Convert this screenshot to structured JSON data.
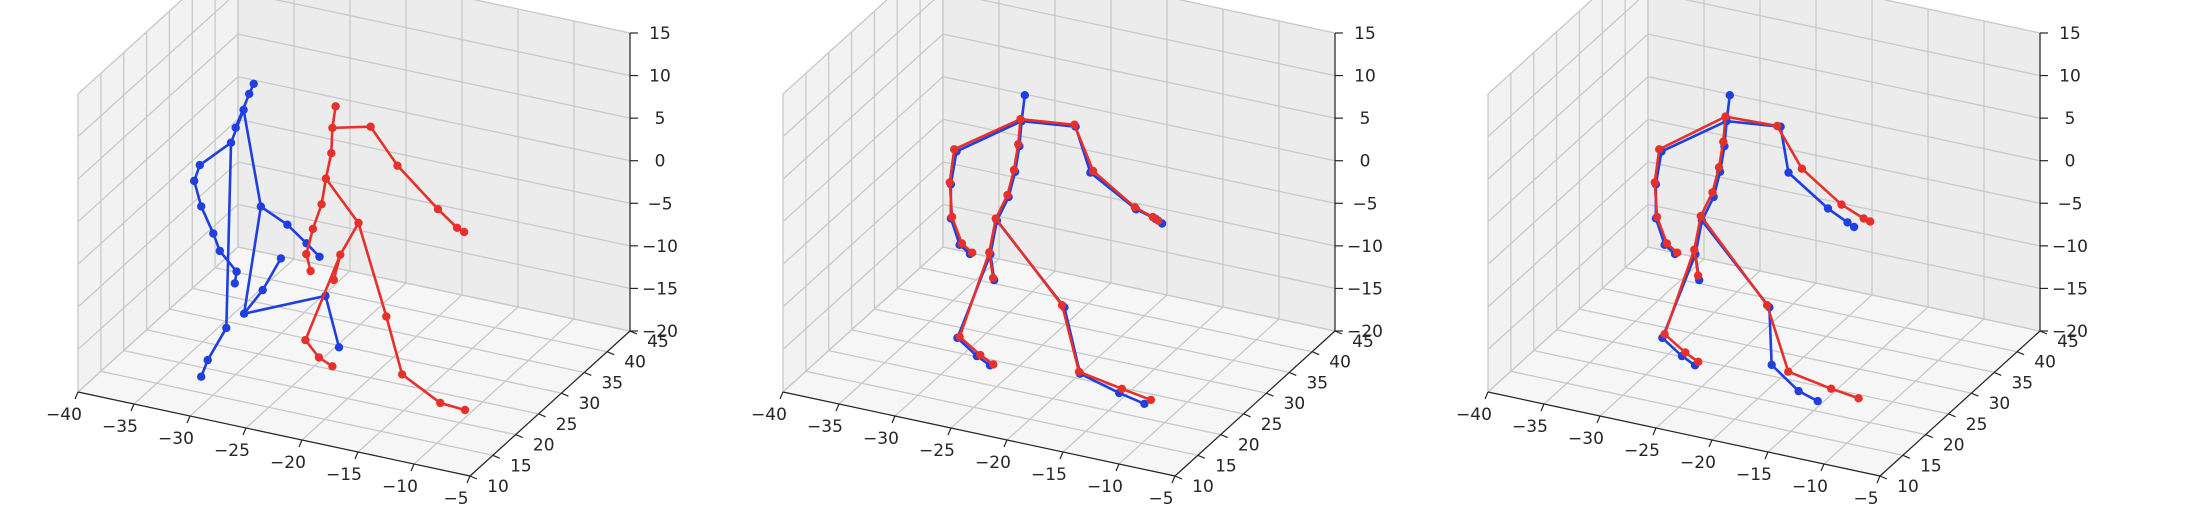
{
  "chart_data": [
    {
      "type": "scatter",
      "projection": "3d",
      "title": "",
      "xlabel": "",
      "ylabel": "",
      "zlabel": "",
      "xlim": [
        -40,
        -5
      ],
      "ylim": [
        10,
        45
      ],
      "zlim": [
        -20,
        15
      ],
      "xticks": [
        "−40",
        "−35",
        "−30",
        "−25",
        "−20",
        "−15",
        "−10",
        "−5"
      ],
      "yticks": [
        "10",
        "15",
        "20",
        "25",
        "30",
        "35",
        "40",
        "45"
      ],
      "zticks": [
        "−20",
        "−15",
        "−10",
        "−5",
        "0",
        "5",
        "10",
        "15"
      ],
      "grid": true,
      "series": [
        {
          "color": "#1f3fe0",
          "points": [
            [
              -30,
              20,
              9
            ],
            [
              -29,
              20.5,
              13
            ],
            [
              -28.8,
              21,
              14
            ],
            [
              -29.5,
              20.5,
              11
            ],
            [
              -30.5,
              20.2,
              7
            ],
            [
              -33,
              19.5,
              4
            ],
            [
              -33.5,
              19.5,
              2
            ],
            [
              -33,
              19.8,
              -1
            ],
            [
              -32,
              20,
              -4
            ],
            [
              -31.5,
              20.2,
              -6
            ],
            [
              -30,
              20.2,
              -8
            ],
            [
              -30.2,
              20.3,
              -9.5
            ],
            [
              -28,
              20.6,
              0
            ],
            [
              -26,
              21.5,
              -2
            ],
            [
              -24.5,
              22,
              -4
            ],
            [
              -23.5,
              22.4,
              -5.5
            ],
            [
              -31,
              20.4,
              -15
            ],
            [
              -32.5,
              20,
              -19
            ],
            [
              -33,
              19.8,
              -21
            ],
            [
              -29.5,
              20.6,
              -13
            ],
            [
              -28,
              21,
              -10
            ],
            [
              -26.5,
              21.3,
              -6
            ],
            [
              -23,
              22.5,
              -10
            ],
            [
              -22,
              23,
              -16
            ]
          ]
        },
        {
          "color": "#e8302b",
          "points": [
            [
              -23,
              24,
              9
            ],
            [
              -22.8,
              24.2,
              11.5
            ],
            [
              -23.1,
              24,
              6
            ],
            [
              -23.5,
              23.8,
              3
            ],
            [
              -23.8,
              23.6,
              0
            ],
            [
              -24.5,
              23.4,
              -3
            ],
            [
              -25,
              23.2,
              -6
            ],
            [
              -24.7,
              23.4,
              -8
            ],
            [
              -20,
              25,
              9.5
            ],
            [
              -18,
              26,
              5
            ],
            [
              -15,
              27.5,
              0
            ],
            [
              -13.5,
              28,
              -2
            ],
            [
              -13,
              28.3,
              -2.5
            ],
            [
              -21,
              24.8,
              -2
            ],
            [
              -22.5,
              24.5,
              -6
            ],
            [
              -23,
              24.3,
              -9
            ],
            [
              -19,
              26,
              -13
            ],
            [
              -18,
              27,
              -20
            ],
            [
              -15,
              28,
              -23
            ],
            [
              -13,
              28.5,
              -23.5
            ],
            [
              -25,
              23,
              -16
            ],
            [
              -24,
              23.5,
              -18
            ],
            [
              -23,
              24,
              -19
            ]
          ]
        }
      ]
    },
    {
      "type": "scatter",
      "projection": "3d",
      "title": "",
      "xlabel": "",
      "ylabel": "",
      "zlabel": "",
      "xlim": [
        -40,
        -5
      ],
      "ylim": [
        10,
        45
      ],
      "zlim": [
        -20,
        15
      ],
      "xticks": [
        "−40",
        "−35",
        "−30",
        "−25",
        "−20",
        "−15",
        "−10",
        "−5"
      ],
      "yticks": [
        "10",
        "15",
        "20",
        "25",
        "30",
        "35",
        "40",
        "45"
      ],
      "zticks": [
        "−20",
        "−15",
        "−10",
        "−5",
        "0",
        "5",
        "10",
        "15"
      ],
      "grid": true,
      "series": [
        {
          "color": "#1f3fe0",
          "points": [
            [
              -24,
              23,
              10
            ],
            [
              -23.8,
              23.2,
              13
            ],
            [
              -24.2,
              23,
              7
            ],
            [
              -24.5,
              22.8,
              4
            ],
            [
              -25,
              22.6,
              1
            ],
            [
              -29,
              21,
              6
            ],
            [
              -29.5,
              21,
              2
            ],
            [
              -29.5,
              21,
              -2
            ],
            [
              -28.8,
              21.2,
              -5
            ],
            [
              -28,
              21.5,
              -6
            ],
            [
              -20,
              25,
              9.5
            ],
            [
              -19,
              25.8,
              4
            ],
            [
              -15.5,
              27.2,
              0
            ],
            [
              -14,
              27.8,
              -1
            ],
            [
              -13.5,
              28,
              -1.5
            ],
            [
              -26,
              22.5,
              -2
            ],
            [
              -26.5,
              22.3,
              -6
            ],
            [
              -26.2,
              22.4,
              -9
            ],
            [
              -21,
              25,
              -12
            ],
            [
              -20,
              26,
              -20
            ],
            [
              -17,
              27.2,
              -22
            ],
            [
              -15,
              27.8,
              -23
            ],
            [
              -29,
              21.2,
              -16
            ],
            [
              -27.5,
              21.8,
              -18
            ],
            [
              -26.5,
              22.2,
              -19
            ]
          ]
        },
        {
          "color": "#e8302b",
          "points": [
            [
              -24.1,
              23,
              10.2
            ],
            [
              -24.3,
              23,
              7.2
            ],
            [
              -24.6,
              22.8,
              4.2
            ],
            [
              -25.1,
              22.6,
              1.2
            ],
            [
              -29.2,
              21,
              6.2
            ],
            [
              -29.6,
              21,
              2.2
            ],
            [
              -29.4,
              21,
              -1.8
            ],
            [
              -28.6,
              21.2,
              -4.8
            ],
            [
              -27.8,
              21.5,
              -5.8
            ],
            [
              -20.1,
              25,
              9.7
            ],
            [
              -18.8,
              25.9,
              4.2
            ],
            [
              -15.6,
              27.2,
              0.2
            ],
            [
              -14.2,
              27.7,
              -0.8
            ],
            [
              -13.8,
              27.9,
              -1.2
            ],
            [
              -26.1,
              22.5,
              -1.8
            ],
            [
              -26.6,
              22.3,
              -5.8
            ],
            [
              -26.3,
              22.4,
              -8.8
            ],
            [
              -21.2,
              25,
              -11.8
            ],
            [
              -20.1,
              26,
              -19.8
            ],
            [
              -16.8,
              27.3,
              -21.5
            ],
            [
              -14.5,
              28,
              -22.5
            ],
            [
              -28.8,
              21.2,
              -15.8
            ],
            [
              -27.2,
              21.8,
              -17.8
            ],
            [
              -26.2,
              22.2,
              -18.8
            ]
          ]
        }
      ]
    },
    {
      "type": "scatter",
      "projection": "3d",
      "title": "",
      "xlabel": "",
      "ylabel": "",
      "zlabel": "",
      "xlim": [
        -40,
        -5
      ],
      "ylim": [
        10,
        45
      ],
      "zlim": [
        -20,
        15
      ],
      "xticks": [
        "−40",
        "−35",
        "−30",
        "−25",
        "−20",
        "−15",
        "−10",
        "−5"
      ],
      "yticks": [
        "10",
        "15",
        "20",
        "25",
        "30",
        "35",
        "40",
        "45"
      ],
      "zticks": [
        "−20",
        "−15",
        "−10",
        "−5",
        "0",
        "5",
        "10",
        "15"
      ],
      "grid": true,
      "series": [
        {
          "color": "#1f3fe0",
          "points": [
            [
              -24,
              23,
              10
            ],
            [
              -23.8,
              23.2,
              13
            ],
            [
              -24.2,
              23,
              7
            ],
            [
              -24.5,
              22.8,
              4
            ],
            [
              -25,
              22.6,
              1
            ],
            [
              -29,
              21,
              6
            ],
            [
              -29.5,
              21,
              2
            ],
            [
              -29.5,
              21,
              -2
            ],
            [
              -28.8,
              21.2,
              -5
            ],
            [
              -28,
              21.5,
              -6
            ],
            [
              -20,
              25,
              9.5
            ],
            [
              -19.5,
              25.5,
              4
            ],
            [
              -16.5,
              26.8,
              0
            ],
            [
              -15,
              27.4,
              -1.5
            ],
            [
              -14.5,
              27.6,
              -2
            ],
            [
              -26,
              22.5,
              -2
            ],
            [
              -26.5,
              22.3,
              -6
            ],
            [
              -26.2,
              22.4,
              -9
            ],
            [
              -21,
              25,
              -12
            ],
            [
              -21,
              25.5,
              -19
            ],
            [
              -19,
              26.5,
              -22
            ],
            [
              -17.5,
              27,
              -23
            ],
            [
              -29,
              21.2,
              -16
            ],
            [
              -27.5,
              21.8,
              -18
            ],
            [
              -26.5,
              22.2,
              -19
            ]
          ]
        },
        {
          "color": "#e8302b",
          "points": [
            [
              -24.1,
              23,
              10.5
            ],
            [
              -24.3,
              23,
              7.5
            ],
            [
              -24.6,
              22.8,
              4.5
            ],
            [
              -25.1,
              22.6,
              1.5
            ],
            [
              -29.2,
              21,
              6.2
            ],
            [
              -29.6,
              21,
              2.2
            ],
            [
              -29.4,
              21,
              -1.8
            ],
            [
              -28.6,
              21.2,
              -4.8
            ],
            [
              -27.8,
              21.5,
              -5.8
            ],
            [
              -20.3,
              25,
              9.5
            ],
            [
              -18.5,
              26,
              4.5
            ],
            [
              -15.5,
              27.3,
              0.5
            ],
            [
              -13.8,
              28,
              -1
            ],
            [
              -13.3,
              28.2,
              -1.3
            ],
            [
              -26.1,
              22.5,
              -1.5
            ],
            [
              -26.6,
              22.3,
              -5.5
            ],
            [
              -26.3,
              22.4,
              -8.5
            ],
            [
              -21.2,
              25,
              -11.8
            ],
            [
              -19.8,
              26.2,
              -19.8
            ],
            [
              -16.5,
              27.5,
              -21.5
            ],
            [
              -14.3,
              28.1,
              -22.3
            ],
            [
              -28.8,
              21.2,
              -15.5
            ],
            [
              -27.2,
              21.8,
              -17.5
            ],
            [
              -26.2,
              22.2,
              -18.5
            ]
          ]
        }
      ]
    }
  ]
}
